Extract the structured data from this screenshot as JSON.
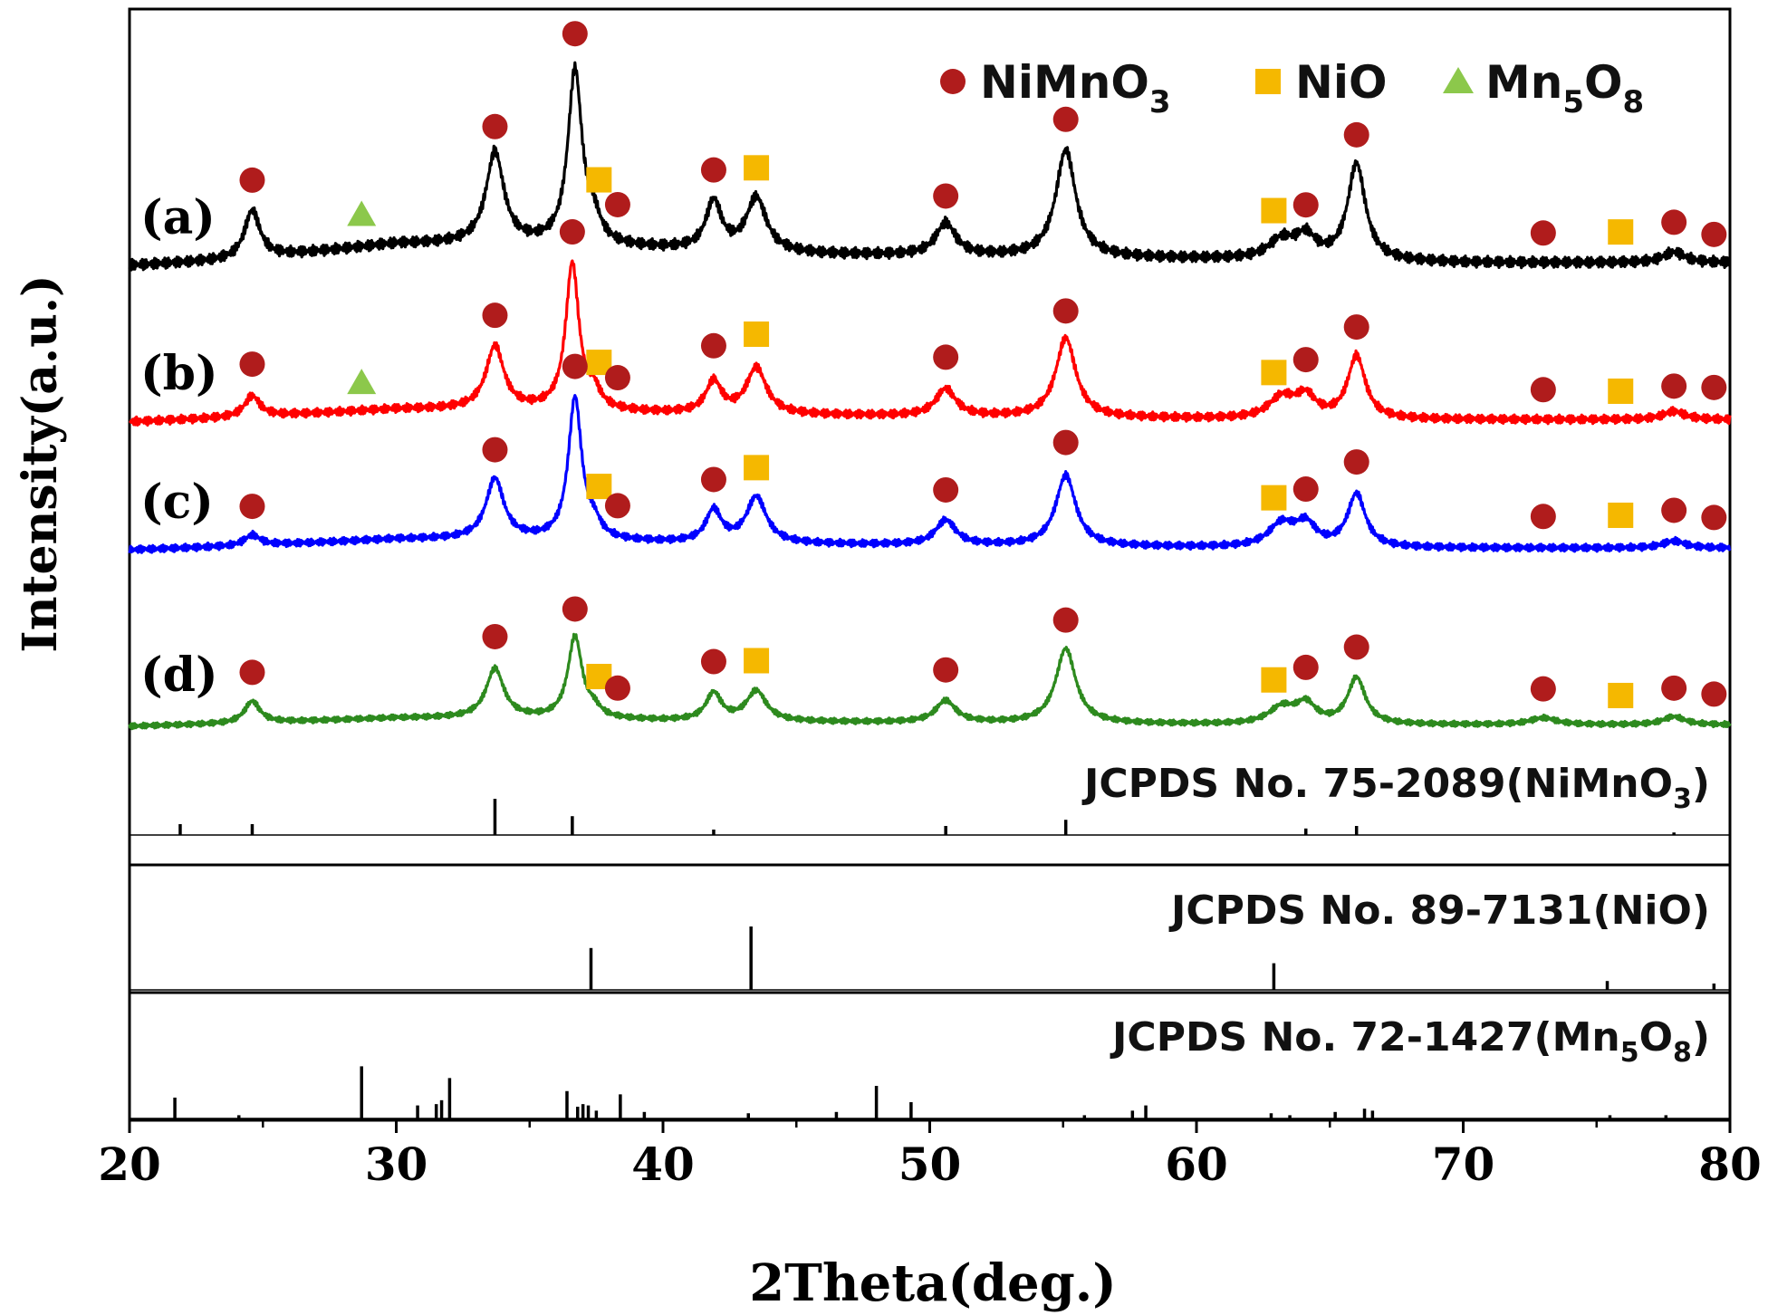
{
  "chart_data": {
    "type": "line",
    "xlabel": "2Theta(deg.)",
    "ylabel": "Intensity(a.u.)",
    "xlim": [
      20,
      80
    ],
    "xticks": [
      20,
      30,
      40,
      50,
      60,
      70,
      80
    ],
    "legend": {
      "placement": "top-right",
      "items": [
        {
          "marker": "circle",
          "color": "#b01c1c",
          "label": "NiMnO",
          "sub": "3"
        },
        {
          "marker": "square",
          "color": "#f5b800",
          "label": "NiO",
          "sub": ""
        },
        {
          "marker": "triangle",
          "color": "#8cc84b",
          "label": "Mn",
          "sub": "5",
          "label2": "O",
          "sub2": "8"
        }
      ]
    },
    "series": [
      {
        "name": "(a)",
        "color": "#000000",
        "baseline": [
          [
            20,
            0.04
          ],
          [
            24,
            0.06
          ],
          [
            30,
            0.12
          ],
          [
            34,
            0.12
          ],
          [
            40,
            0.1
          ],
          [
            46,
            0.08
          ],
          [
            55,
            0.07
          ],
          [
            63,
            0.06
          ],
          [
            70,
            0.05
          ],
          [
            80,
            0.05
          ]
        ],
        "peaks": [
          [
            24.6,
            0.18,
            0.35
          ],
          [
            33.7,
            0.34,
            0.4
          ],
          [
            36.7,
            0.65,
            0.32
          ],
          [
            37.4,
            0.08,
            0.3
          ],
          [
            41.9,
            0.18,
            0.35
          ],
          [
            43.5,
            0.2,
            0.45
          ],
          [
            50.6,
            0.12,
            0.45
          ],
          [
            55.1,
            0.4,
            0.45
          ],
          [
            63.2,
            0.07,
            0.6
          ],
          [
            64.1,
            0.08,
            0.45
          ],
          [
            66,
            0.36,
            0.4
          ],
          [
            77.9,
            0.04,
            0.5
          ]
        ],
        "markers": [
          [
            24.6,
            "c"
          ],
          [
            28.7,
            "t"
          ],
          [
            33.7,
            "c"
          ],
          [
            36.7,
            "c"
          ],
          [
            37.6,
            "s"
          ],
          [
            38.3,
            "c"
          ],
          [
            41.9,
            "c"
          ],
          [
            43.5,
            "s"
          ],
          [
            50.6,
            "c"
          ],
          [
            55.1,
            "c"
          ],
          [
            62.9,
            "s"
          ],
          [
            64.1,
            "c"
          ],
          [
            66,
            "c"
          ],
          [
            73,
            "c"
          ],
          [
            75.9,
            "s"
          ],
          [
            77.9,
            "c"
          ],
          [
            79.4,
            "c"
          ]
        ]
      },
      {
        "name": "(b)",
        "color": "#ff0000",
        "baseline": [
          [
            20,
            0.04
          ],
          [
            24,
            0.06
          ],
          [
            30,
            0.1
          ],
          [
            34,
            0.1
          ],
          [
            40,
            0.08
          ],
          [
            46,
            0.07
          ],
          [
            55,
            0.06
          ],
          [
            63,
            0.05
          ],
          [
            70,
            0.05
          ],
          [
            80,
            0.05
          ]
        ],
        "peaks": [
          [
            24.6,
            0.1,
            0.35
          ],
          [
            33.7,
            0.3,
            0.4
          ],
          [
            36.6,
            0.7,
            0.3
          ],
          [
            37.4,
            0.08,
            0.3
          ],
          [
            41.9,
            0.15,
            0.35
          ],
          [
            43.5,
            0.22,
            0.45
          ],
          [
            50.6,
            0.13,
            0.45
          ],
          [
            55.1,
            0.38,
            0.45
          ],
          [
            63.2,
            0.1,
            0.6
          ],
          [
            64.1,
            0.1,
            0.45
          ],
          [
            66,
            0.3,
            0.4
          ],
          [
            77.9,
            0.04,
            0.5
          ]
        ],
        "markers": [
          [
            24.6,
            "c"
          ],
          [
            28.7,
            "t"
          ],
          [
            33.7,
            "c"
          ],
          [
            36.6,
            "c"
          ],
          [
            37.6,
            "s"
          ],
          [
            38.3,
            "c"
          ],
          [
            41.9,
            "c"
          ],
          [
            43.5,
            "s"
          ],
          [
            50.6,
            "c"
          ],
          [
            55.1,
            "c"
          ],
          [
            62.9,
            "s"
          ],
          [
            64.1,
            "c"
          ],
          [
            66,
            "c"
          ],
          [
            73,
            "c"
          ],
          [
            75.9,
            "s"
          ],
          [
            77.9,
            "c"
          ],
          [
            79.4,
            "c"
          ]
        ]
      },
      {
        "name": "(c)",
        "color": "#0000ff",
        "baseline": [
          [
            20,
            0.04
          ],
          [
            24,
            0.06
          ],
          [
            30,
            0.1
          ],
          [
            34,
            0.1
          ],
          [
            40,
            0.08
          ],
          [
            46,
            0.07
          ],
          [
            55,
            0.06
          ],
          [
            63,
            0.05
          ],
          [
            70,
            0.05
          ],
          [
            80,
            0.05
          ]
        ],
        "peaks": [
          [
            24.6,
            0.06,
            0.35
          ],
          [
            33.7,
            0.34,
            0.4
          ],
          [
            36.7,
            0.8,
            0.3
          ],
          [
            37.4,
            0.08,
            0.3
          ],
          [
            41.9,
            0.18,
            0.35
          ],
          [
            43.5,
            0.26,
            0.45
          ],
          [
            50.6,
            0.14,
            0.45
          ],
          [
            55.1,
            0.4,
            0.45
          ],
          [
            63.2,
            0.13,
            0.6
          ],
          [
            64.1,
            0.12,
            0.45
          ],
          [
            66,
            0.3,
            0.4
          ],
          [
            77.9,
            0.04,
            0.5
          ]
        ],
        "markers": [
          [
            24.6,
            "c"
          ],
          [
            33.7,
            "c"
          ],
          [
            36.7,
            "c"
          ],
          [
            37.6,
            "s"
          ],
          [
            38.3,
            "c"
          ],
          [
            41.9,
            "c"
          ],
          [
            43.5,
            "s"
          ],
          [
            50.6,
            "c"
          ],
          [
            55.1,
            "c"
          ],
          [
            62.9,
            "s"
          ],
          [
            64.1,
            "c"
          ],
          [
            66,
            "c"
          ],
          [
            73,
            "c"
          ],
          [
            75.9,
            "s"
          ],
          [
            77.9,
            "c"
          ],
          [
            79.4,
            "c"
          ]
        ]
      },
      {
        "name": "(d)",
        "color": "#2d8a1e",
        "baseline": [
          [
            20,
            0.04
          ],
          [
            24,
            0.06
          ],
          [
            30,
            0.1
          ],
          [
            34,
            0.1
          ],
          [
            40,
            0.08
          ],
          [
            46,
            0.07
          ],
          [
            55,
            0.06
          ],
          [
            63,
            0.05
          ],
          [
            70,
            0.05
          ],
          [
            80,
            0.05
          ]
        ],
        "peaks": [
          [
            24.6,
            0.16,
            0.35
          ],
          [
            33.7,
            0.36,
            0.4
          ],
          [
            36.7,
            0.6,
            0.32
          ],
          [
            37.4,
            0.06,
            0.3
          ],
          [
            41.9,
            0.2,
            0.35
          ],
          [
            43.5,
            0.22,
            0.45
          ],
          [
            50.6,
            0.16,
            0.45
          ],
          [
            55.1,
            0.55,
            0.45
          ],
          [
            63.2,
            0.12,
            0.6
          ],
          [
            64.1,
            0.14,
            0.45
          ],
          [
            66,
            0.34,
            0.4
          ],
          [
            73,
            0.05,
            0.6
          ],
          [
            77.9,
            0.06,
            0.5
          ]
        ],
        "markers": [
          [
            24.6,
            "c"
          ],
          [
            33.7,
            "c"
          ],
          [
            36.7,
            "c"
          ],
          [
            37.6,
            "s"
          ],
          [
            38.3,
            "c"
          ],
          [
            41.9,
            "c"
          ],
          [
            43.5,
            "s"
          ],
          [
            50.6,
            "c"
          ],
          [
            55.1,
            "c"
          ],
          [
            62.9,
            "s"
          ],
          [
            64.1,
            "c"
          ],
          [
            66,
            "c"
          ],
          [
            73,
            "c"
          ],
          [
            75.9,
            "s"
          ],
          [
            77.9,
            "c"
          ],
          [
            79.4,
            "c"
          ]
        ]
      }
    ],
    "references": [
      {
        "label": "JCPDS No. 75-2089(NiMnO",
        "sub": "3",
        "tail": ")",
        "sticks": [
          [
            21.9,
            0.3
          ],
          [
            24.6,
            0.3
          ],
          [
            33.7,
            1
          ],
          [
            36.6,
            0.52
          ],
          [
            41.9,
            0.15
          ],
          [
            50.6,
            0.25
          ],
          [
            55.1,
            0.42
          ],
          [
            64.1,
            0.18
          ],
          [
            66,
            0.25
          ],
          [
            77.9,
            0.07
          ]
        ]
      },
      {
        "label": "JCPDS No. 89-7131(NiO)",
        "sub": "",
        "tail": "",
        "sticks": [
          [
            37.3,
            0.66
          ],
          [
            43.3,
            1
          ],
          [
            62.9,
            0.42
          ],
          [
            75.4,
            0.14
          ],
          [
            79.4,
            0.1
          ]
        ]
      },
      {
        "label": "JCPDS No. 72-1427(Mn",
        "sub": "5",
        "tail": "O",
        "sub2": "8",
        "tail2": ")",
        "sticks": [
          [
            21.7,
            0.32
          ],
          [
            24.1,
            0.05
          ],
          [
            28.7,
            0.8
          ],
          [
            30.8,
            0.2
          ],
          [
            31.5,
            0.22
          ],
          [
            31.7,
            0.28
          ],
          [
            32.0,
            0.62
          ],
          [
            36.4,
            0.42
          ],
          [
            36.8,
            0.18
          ],
          [
            37.0,
            0.22
          ],
          [
            37.2,
            0.2
          ],
          [
            37.5,
            0.12
          ],
          [
            38.4,
            0.37
          ],
          [
            39.3,
            0.1
          ],
          [
            43.2,
            0.08
          ],
          [
            46.5,
            0.1
          ],
          [
            48.0,
            0.5
          ],
          [
            49.3,
            0.25
          ],
          [
            55.8,
            0.05
          ],
          [
            57.6,
            0.12
          ],
          [
            58.1,
            0.2
          ],
          [
            62.8,
            0.08
          ],
          [
            63.5,
            0.05
          ],
          [
            65.2,
            0.1
          ],
          [
            66.3,
            0.15
          ],
          [
            66.6,
            0.12
          ],
          [
            75.5,
            0.05
          ],
          [
            77.6,
            0.05
          ]
        ]
      }
    ],
    "axis_tick_labels": [
      "20",
      "30",
      "40",
      "50",
      "60",
      "70",
      "80"
    ]
  }
}
